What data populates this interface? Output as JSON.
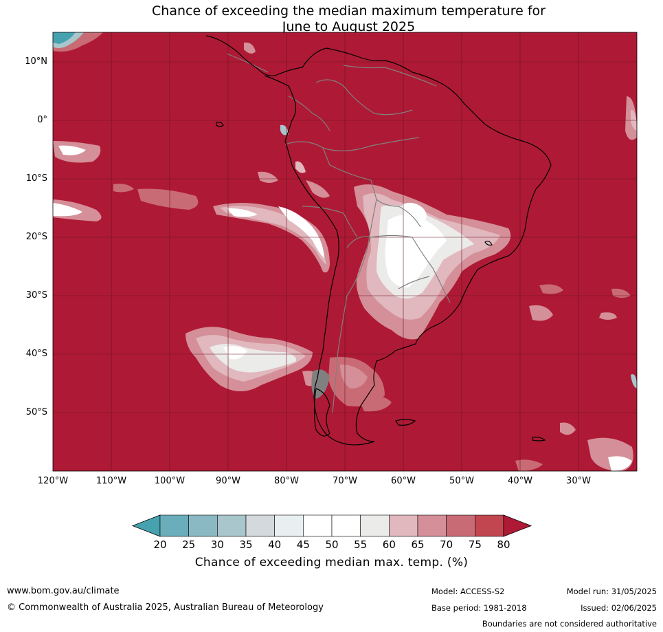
{
  "title": {
    "line1": "Chance of exceeding the median maximum temperature for",
    "line2": "June to August 2025"
  },
  "map": {
    "lat_labels": [
      "10°N",
      "0°",
      "10°S",
      "20°S",
      "30°S",
      "40°S",
      "50°S"
    ],
    "lon_labels": [
      "120°W",
      "110°W",
      "100°W",
      "90°W",
      "80°W",
      "70°W",
      "60°W",
      "50°W",
      "40°W",
      "30°W"
    ],
    "lon_range": [
      -120,
      -20
    ],
    "lat_range": [
      -60,
      15
    ],
    "dominant_category": "80+",
    "colors": {
      "ocean_land_fill": "#ae1a35",
      "gridline": "#6a1020",
      "coastline": "#000000",
      "borders": "#808080"
    }
  },
  "colorbar": {
    "title": "Chance of exceeding median max. temp. (%)",
    "ticks": [
      "20",
      "25",
      "30",
      "35",
      "40",
      "45",
      "50",
      "55",
      "60",
      "65",
      "70",
      "75",
      "80"
    ],
    "colors": [
      "#47a2b0",
      "#6aaebb",
      "#8ab9c4",
      "#a8c6cc",
      "#d3d9dc",
      "#e8eff1",
      "#ffffff",
      "#ffffff",
      "#ebebea",
      "#e0b8be",
      "#d48f98",
      "#c96b75",
      "#c1464f",
      "#ae1a35"
    ]
  },
  "footer": {
    "website": "www.bom.gov.au/climate",
    "copyright": "© Commonwealth of Australia 2025, Australian Bureau of Meteorology",
    "model": "Model: ACCESS-S2",
    "base_period": "Base period: 1981-2018",
    "model_run": "Model run: 31/05/2025",
    "issued": "Issued: 02/06/2025",
    "disclaimer": "Boundaries are not considered authoritative"
  }
}
